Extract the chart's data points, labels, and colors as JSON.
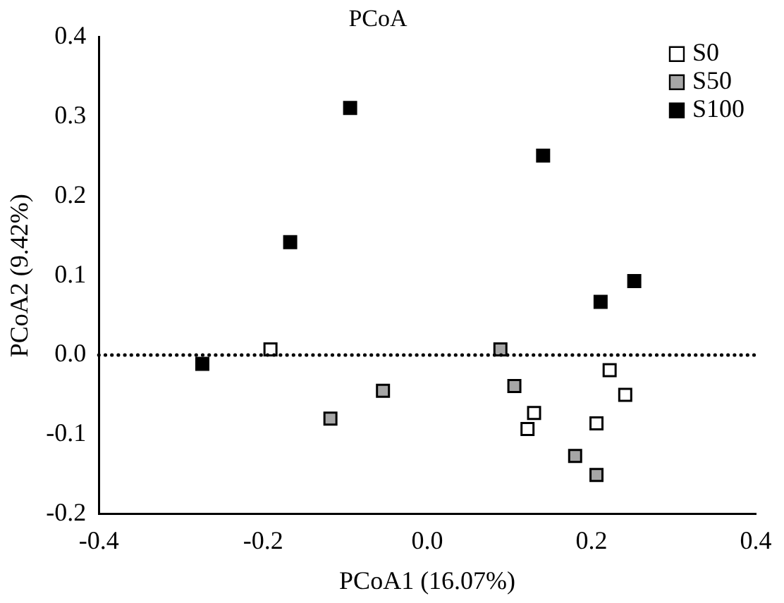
{
  "chart_data": {
    "type": "scatter",
    "title": "PCoA",
    "xlabel": "PCoA1 (16.07%)",
    "ylabel": "PCoA2 (9.42%)",
    "xlim": [
      -0.4,
      0.4
    ],
    "ylim": [
      -0.2,
      0.4
    ],
    "xticks": [
      -0.4,
      -0.2,
      {
        "value": 0,
        "label": "0.0"
      },
      0.2,
      0.4
    ],
    "yticks": [
      -0.2,
      -0.1,
      {
        "value": 0,
        "label": "0.0"
      },
      0.1,
      0.2,
      0.3,
      0.4
    ],
    "grid": false,
    "legend": "top right",
    "marker": "square",
    "ref_lines": [
      {
        "axis": "y",
        "value": 0,
        "line_style": "dotted",
        "color": "#000000"
      }
    ],
    "series": [
      {
        "name": "S0",
        "color": "#ffffff",
        "x": [
          -0.191,
          0.222,
          0.241,
          0.13,
          0.122,
          0.206
        ],
        "values": [
          0.007,
          -0.019,
          -0.05,
          -0.073,
          -0.093,
          -0.086
        ]
      },
      {
        "name": "S50",
        "color": "#a6a6a6",
        "x": [
          0.089,
          0.106,
          -0.054,
          -0.118,
          0.18,
          0.206
        ],
        "values": [
          0.007,
          -0.039,
          -0.045,
          -0.08,
          -0.127,
          -0.151
        ]
      },
      {
        "name": "S100",
        "color": "#000000",
        "x": [
          -0.274,
          -0.167,
          -0.094,
          0.141,
          0.211,
          0.252
        ],
        "values": [
          -0.011,
          0.142,
          0.311,
          0.251,
          0.067,
          0.093
        ]
      }
    ]
  }
}
